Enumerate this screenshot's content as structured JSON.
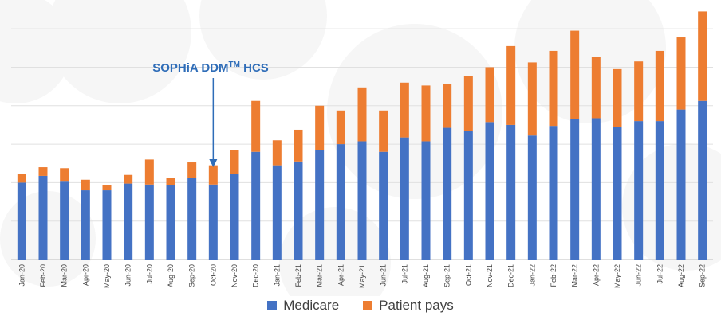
{
  "chart_data": {
    "type": "bar",
    "stacked": true,
    "title": "",
    "xlabel": "",
    "ylabel": "",
    "ylim": [
      0,
      26
    ],
    "grid": true,
    "legend_position": "bottom",
    "categories": [
      "Jan-20",
      "Feb-20",
      "Mar-20",
      "Apr-20",
      "May-20",
      "Jun-20",
      "Jul-20",
      "Aug-20",
      "Sep-20",
      "Oct-20",
      "Nov-20",
      "Dec-20",
      "Jan-21",
      "Feb-21",
      "Mar-21",
      "Apr-21",
      "May-21",
      "Jun-21",
      "Jul-21",
      "Aug-21",
      "Sep-21",
      "Oct-21",
      "Nov-21",
      "Dec-21",
      "Jan-22",
      "Feb-22",
      "Mar-22",
      "Apr-22",
      "May-22",
      "Jun-22",
      "Jul-22",
      "Aug-22",
      "Sep-22"
    ],
    "series": [
      {
        "name": "Medicare",
        "color": "#4472c4",
        "values": [
          8.0,
          8.7,
          8.1,
          7.2,
          7.2,
          7.9,
          7.8,
          7.7,
          8.5,
          7.8,
          8.9,
          11.2,
          9.8,
          10.2,
          11.4,
          12.0,
          12.3,
          11.2,
          12.7,
          12.3,
          13.7,
          13.4,
          14.3,
          14.0,
          12.9,
          13.9,
          14.6,
          14.7,
          13.8,
          14.4,
          14.4,
          15.6,
          16.5
        ]
      },
      {
        "name": "Patient pays",
        "color": "#ed7d31",
        "values": [
          0.9,
          0.9,
          1.4,
          1.1,
          0.5,
          0.9,
          2.6,
          0.8,
          1.6,
          2.0,
          2.5,
          5.3,
          2.6,
          3.3,
          4.6,
          3.5,
          5.6,
          4.3,
          5.7,
          5.8,
          4.6,
          5.7,
          5.7,
          8.2,
          7.6,
          7.8,
          9.2,
          6.4,
          6.0,
          6.2,
          7.3,
          7.5,
          9.3
        ]
      }
    ],
    "annotation": {
      "text": "SOPHiA DDM",
      "superscript": "TM",
      "suffix": " HCS",
      "category": "Oct-20",
      "color": "#2f6db8"
    }
  }
}
